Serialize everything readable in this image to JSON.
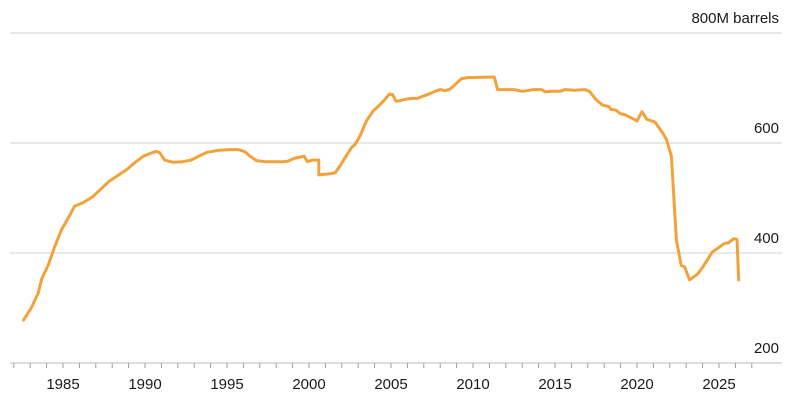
{
  "chart_data": {
    "type": "line",
    "title": "",
    "xlabel": "",
    "ylabel": "",
    "ylim": [
      200,
      800
    ],
    "xlim": [
      1982,
      2027
    ],
    "grid": "horizontal",
    "y_ticks": [
      {
        "value": 800,
        "label": "800M barrels"
      },
      {
        "value": 600,
        "label": "600"
      },
      {
        "value": 400,
        "label": "400"
      },
      {
        "value": 200,
        "label": "200"
      }
    ],
    "x_ticks": [
      {
        "value": 1985,
        "label": "1985"
      },
      {
        "value": 1990,
        "label": "1990"
      },
      {
        "value": 1995,
        "label": "1995"
      },
      {
        "value": 2000,
        "label": "2000"
      },
      {
        "value": 2005,
        "label": "2005"
      },
      {
        "value": 2010,
        "label": "2010"
      },
      {
        "value": 2015,
        "label": "2015"
      },
      {
        "value": 2020,
        "label": "2020"
      },
      {
        "value": 2025,
        "label": "2025"
      }
    ],
    "colors": {
      "series": "#f2a23a",
      "grid": "#d0d0d0"
    },
    "series": [
      {
        "x": [
          1982.6,
          1983.1,
          1983.5,
          1983.7,
          1984.1,
          1984.5,
          1984.9,
          1985.4,
          1985.7,
          1986.2,
          1986.8,
          1987.3,
          1987.8,
          1988.3,
          1988.9,
          1989.4,
          1989.9,
          1990.4,
          1990.7,
          1990.9,
          1991.2,
          1991.7,
          1992.3,
          1992.8,
          1993.4,
          1993.8,
          1994.5,
          1995.2,
          1995.7,
          1996.1,
          1996.4,
          1996.8,
          1997.3,
          1998.4,
          1998.7,
          1999.1,
          1999.7,
          1999.9,
          2000.2,
          2000.6,
          2000.6,
          2001.0,
          2001.3,
          2001.6,
          2001.9,
          2002.3,
          2002.6,
          2002.8,
          2003.1,
          2003.5,
          2003.9,
          2004.2,
          2004.6,
          2004.9,
          2005.1,
          2005.3,
          2005.6,
          2005.8,
          2006.2,
          2006.6,
          2007.3,
          2007.7,
          2008.0,
          2008.3,
          2008.6,
          2008.9,
          2009.3,
          2009.7,
          2011.3,
          2011.5,
          2012.5,
          2013.0,
          2013.7,
          2014.2,
          2014.4,
          2014.8,
          2015.3,
          2015.6,
          2016.2,
          2016.8,
          2017.1,
          2017.5,
          2017.9,
          2018.3,
          2018.4,
          2018.7,
          2019.0,
          2019.3,
          2019.7,
          2020.0,
          2020.3,
          2020.6,
          2021.1,
          2021.6,
          2021.8,
          2022.1,
          2022.4,
          2022.7,
          2022.9,
          2023.2,
          2023.7,
          2024.0,
          2024.3,
          2024.6,
          2024.9,
          2025.3,
          2025.6,
          2025.9,
          2026.1,
          2026.2
        ],
        "values": [
          278,
          302,
          328,
          353,
          378,
          412,
          442,
          468,
          485,
          491,
          502,
          516,
          530,
          540,
          552,
          565,
          576,
          582,
          585,
          582,
          569,
          565,
          566,
          569,
          578,
          583,
          587,
          588,
          588,
          584,
          576,
          568,
          566,
          566,
          567,
          572,
          576,
          566,
          569,
          569,
          542,
          543,
          544,
          546,
          559,
          578,
          592,
          597,
          612,
          640,
          658,
          666,
          678,
          689,
          688,
          676,
          677,
          679,
          681,
          681,
          689,
          694,
          697,
          695,
          698,
          706,
          717,
          719,
          720,
          697,
          697,
          694,
          697,
          697,
          693,
          694,
          694,
          697,
          696,
          697,
          694,
          679,
          669,
          666,
          661,
          660,
          653,
          651,
          645,
          640,
          657,
          643,
          638,
          617,
          606,
          576,
          423,
          377,
          375,
          351,
          362,
          374,
          388,
          402,
          408,
          417,
          419,
          426,
          425,
          351
        ]
      }
    ]
  }
}
